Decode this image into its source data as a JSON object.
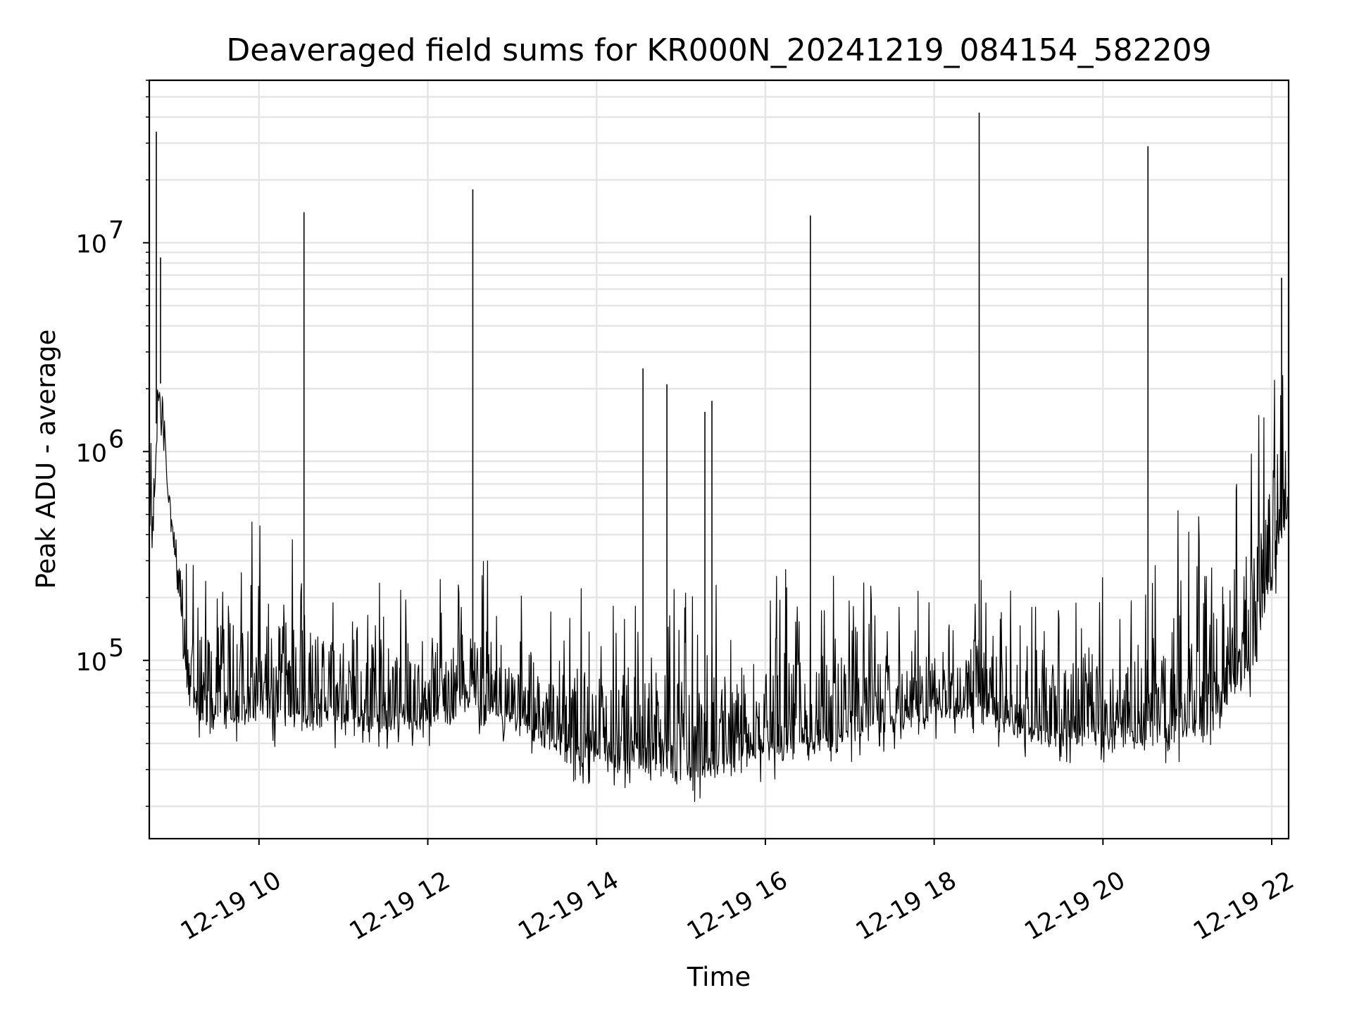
{
  "chart_data": {
    "type": "line",
    "title": "Deaveraged field sums for KR000N_20241219_084154_582209",
    "xlabel": "Time",
    "ylabel": "Peak ADU - average",
    "xlim": [
      "2024-12-19 08:42",
      "2024-12-19 22:12"
    ],
    "ylim": [
      14000,
      60000000
    ],
    "yscale": "log",
    "grid": true,
    "line_color": "#000000",
    "x_ticks": [
      {
        "label": "12-19 10",
        "value": "2024-12-19 10:00"
      },
      {
        "label": "12-19 12",
        "value": "2024-12-19 12:00"
      },
      {
        "label": "12-19 14",
        "value": "2024-12-19 14:00"
      },
      {
        "label": "12-19 16",
        "value": "2024-12-19 16:00"
      },
      {
        "label": "12-19 18",
        "value": "2024-12-19 18:00"
      },
      {
        "label": "12-19 20",
        "value": "2024-12-19 20:00"
      },
      {
        "label": "12-19 22",
        "value": "2024-12-19 22:00"
      }
    ],
    "y_ticks": [
      {
        "base": "10",
        "exp": "5",
        "value": 100000
      },
      {
        "base": "10",
        "exp": "6",
        "value": 1000000
      },
      {
        "base": "10",
        "exp": "7",
        "value": 10000000
      }
    ],
    "series": [
      {
        "x": [
          "2024-12-19 08:42",
          "2024-12-19 08:45",
          "2024-12-19 08:48",
          "2024-12-19 08:50",
          "2024-12-19 08:53",
          "2024-12-19 08:55",
          "2024-12-19 08:58",
          "2024-12-19 09:00",
          "2024-12-19 09:05",
          "2024-12-19 09:10",
          "2024-12-19 09:15",
          "2024-12-19 09:20",
          "2024-12-19 09:25",
          "2024-12-19 09:30",
          "2024-12-19 09:45",
          "2024-12-19 10:00",
          "2024-12-19 10:15",
          "2024-12-19 10:30",
          "2024-12-19 10:45",
          "2024-12-19 11:00",
          "2024-12-19 11:15",
          "2024-12-19 11:30",
          "2024-12-19 11:45",
          "2024-12-19 12:00",
          "2024-12-19 12:15",
          "2024-12-19 12:30",
          "2024-12-19 12:45",
          "2024-12-19 13:00",
          "2024-12-19 13:15",
          "2024-12-19 13:30",
          "2024-12-19 13:45",
          "2024-12-19 14:00",
          "2024-12-19 14:15",
          "2024-12-19 14:30",
          "2024-12-19 14:45",
          "2024-12-19 15:00",
          "2024-12-19 15:15",
          "2024-12-19 15:30",
          "2024-12-19 15:45",
          "2024-12-19 16:00",
          "2024-12-19 16:15",
          "2024-12-19 16:30",
          "2024-12-19 16:45",
          "2024-12-19 17:00",
          "2024-12-19 17:15",
          "2024-12-19 17:30",
          "2024-12-19 17:45",
          "2024-12-19 18:00",
          "2024-12-19 18:15",
          "2024-12-19 18:30",
          "2024-12-19 18:45",
          "2024-12-19 19:00",
          "2024-12-19 19:15",
          "2024-12-19 19:30",
          "2024-12-19 19:45",
          "2024-12-19 20:00",
          "2024-12-19 20:15",
          "2024-12-19 20:30",
          "2024-12-19 20:45",
          "2024-12-19 21:00",
          "2024-12-19 21:15",
          "2024-12-19 21:30",
          "2024-12-19 21:45",
          "2024-12-19 22:00",
          "2024-12-19 22:12"
        ],
        "low": [
          400000,
          400000,
          1500000,
          1500000,
          1100000,
          600000,
          450000,
          300000,
          120000,
          60000,
          50000,
          45000,
          45000,
          45000,
          45000,
          45000,
          45000,
          45000,
          45000,
          45000,
          45000,
          45000,
          45000,
          45000,
          50000,
          55000,
          50000,
          45000,
          40000,
          35000,
          30000,
          30000,
          28000,
          27000,
          26000,
          25000,
          25000,
          27000,
          30000,
          32000,
          33000,
          33000,
          35000,
          38000,
          42000,
          45000,
          48000,
          50000,
          52000,
          50000,
          45000,
          40000,
          38000,
          38000,
          38000,
          38000,
          36000,
          36000,
          38000,
          40000,
          40000,
          60000,
          80000,
          200000,
          500000
        ],
        "high": [
          900000,
          1200000,
          4000000,
          2500000,
          2400000,
          900000,
          700000,
          600000,
          450000,
          300000,
          300000,
          300000,
          320000,
          350000,
          400000,
          380000,
          360000,
          330000,
          300000,
          260000,
          240000,
          240000,
          240000,
          250000,
          260000,
          280000,
          270000,
          240000,
          220000,
          200000,
          190000,
          190000,
          200000,
          200000,
          200000,
          210000,
          210000,
          210000,
          220000,
          220000,
          230000,
          240000,
          240000,
          230000,
          220000,
          200000,
          190000,
          180000,
          190000,
          260000,
          260000,
          250000,
          240000,
          220000,
          220000,
          220000,
          210000,
          210000,
          300000,
          700000,
          500000,
          700000,
          900000,
          2000000,
          3000000
        ]
      }
    ],
    "spikes": [
      {
        "x": "2024-12-19 08:47",
        "y": 34000000
      },
      {
        "x": "2024-12-19 08:50",
        "y": 8500000
      },
      {
        "x": "2024-12-19 10:32",
        "y": 14000000
      },
      {
        "x": "2024-12-19 12:32",
        "y": 18000000
      },
      {
        "x": "2024-12-19 14:33",
        "y": 2500000
      },
      {
        "x": "2024-12-19 14:50",
        "y": 2100000
      },
      {
        "x": "2024-12-19 15:17",
        "y": 1550000
      },
      {
        "x": "2024-12-19 15:22",
        "y": 1750000
      },
      {
        "x": "2024-12-19 16:32",
        "y": 13500000
      },
      {
        "x": "2024-12-19 18:32",
        "y": 42000000
      },
      {
        "x": "2024-12-19 20:32",
        "y": 29000000
      },
      {
        "x": "2024-12-19 22:07",
        "y": 6800000
      }
    ]
  }
}
